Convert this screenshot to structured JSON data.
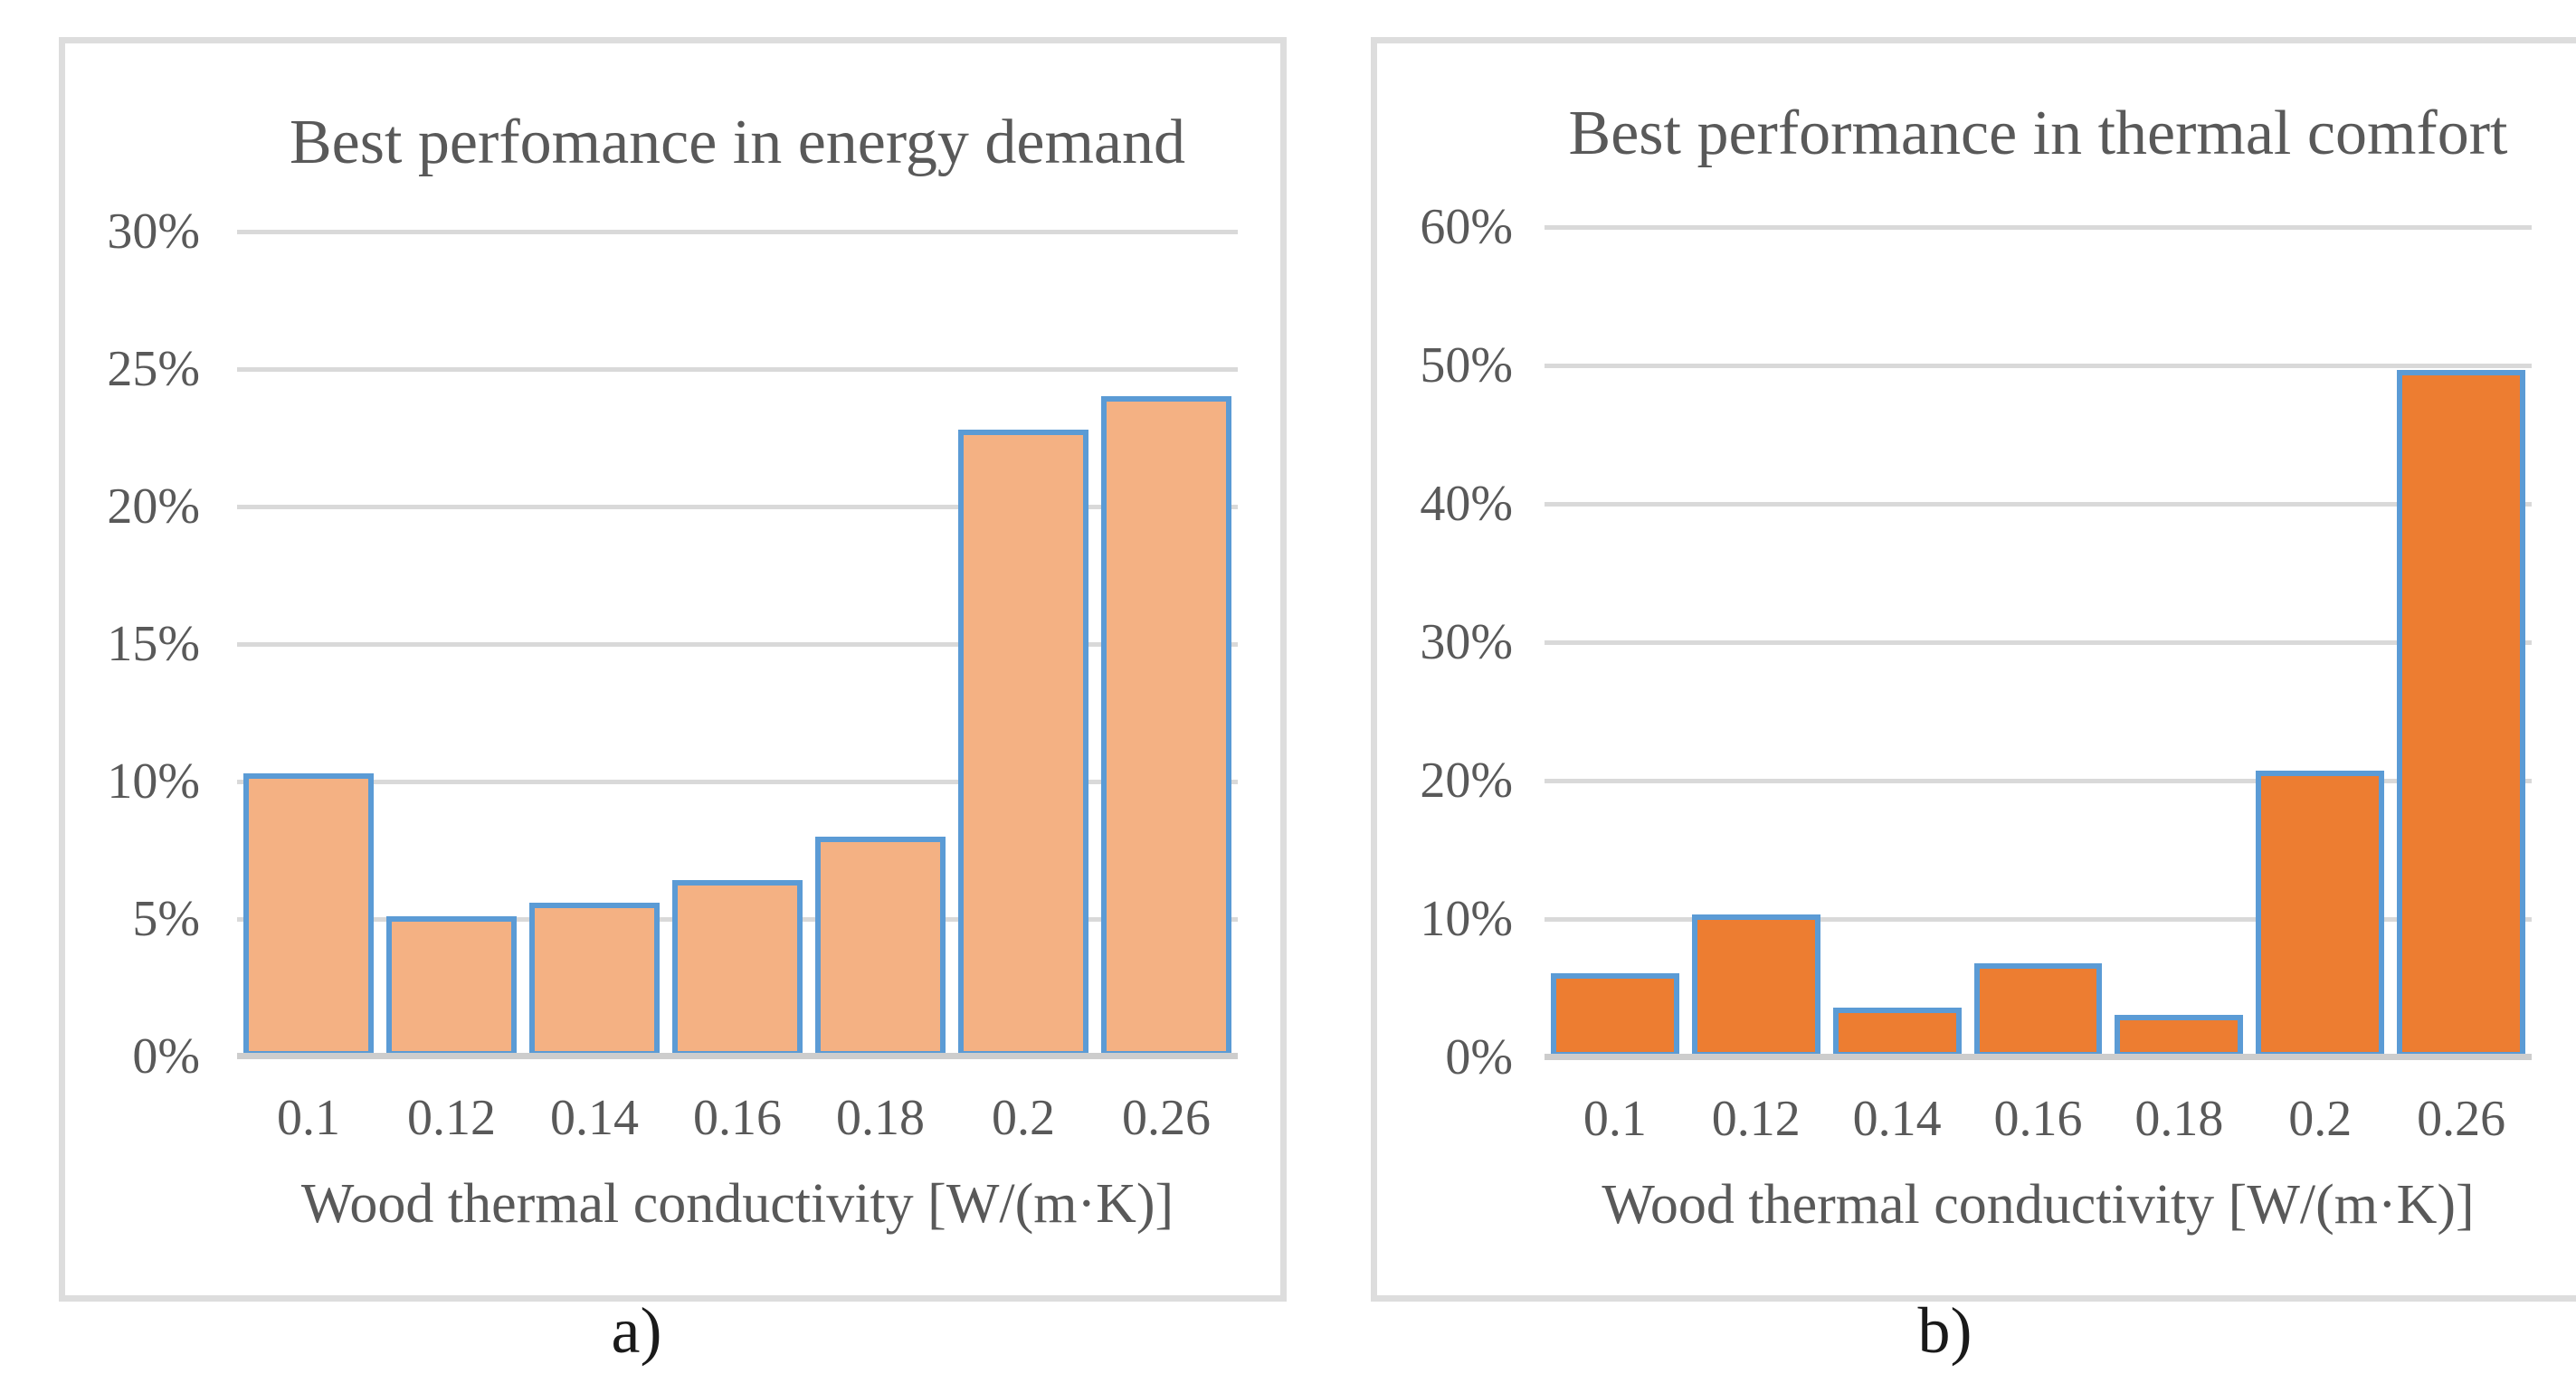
{
  "figure": {
    "captions": [
      "a)",
      "b)"
    ]
  },
  "styles": {
    "gridline_color": "#D9D9D9",
    "axis_line_color": "#CDCDCD",
    "panel_border_color": "#DDDDDD",
    "text_color": "#595959",
    "bar_border_color": "#5B9BD5",
    "left_bar_fill": "#F4B183",
    "right_bar_fill": "#ED7D31"
  },
  "chart_data": [
    {
      "type": "bar",
      "title": "Best perfomance in energy demand",
      "categories": [
        "0.1",
        "0.12",
        "0.14",
        "0.16",
        "0.18",
        "0.2",
        "0.26"
      ],
      "values": [
        10.3,
        5.1,
        5.6,
        6.4,
        8.0,
        22.8,
        24.0
      ],
      "unit": "%",
      "xlabel": "Wood thermal conductivity [W/(m·K)]",
      "ylabel": "",
      "ylim": [
        0,
        30
      ],
      "ytick_step": 5,
      "ytick_labels": [
        "30%",
        "25%",
        "20%",
        "15%",
        "10%",
        "5%",
        "0%"
      ],
      "grid": true,
      "legend": "none",
      "bar_fill": "#F4B183",
      "bar_border": "#5B9BD5"
    },
    {
      "type": "bar",
      "title": "Best performance in thermal comfort",
      "categories": [
        "0.1",
        "0.12",
        "0.14",
        "0.16",
        "0.18",
        "0.2",
        "0.26"
      ],
      "values": [
        6.1,
        10.3,
        3.6,
        6.8,
        3.1,
        20.7,
        49.7
      ],
      "unit": "%",
      "xlabel": "Wood thermal conductivity [W/(m·K)]",
      "ylabel": "",
      "ylim": [
        0,
        60
      ],
      "ytick_step": 10,
      "ytick_labels": [
        "60%",
        "50%",
        "40%",
        "30%",
        "20%",
        "10%",
        "0%"
      ],
      "grid": true,
      "legend": "none",
      "bar_fill": "#ED7D31",
      "bar_border": "#5B9BD5"
    }
  ]
}
